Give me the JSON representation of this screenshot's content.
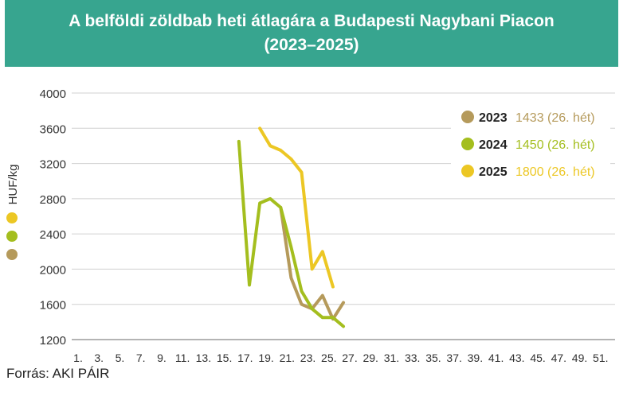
{
  "header": {
    "title_line1": "A belföldi zöldbab heti átlagára a Budapesti Nagybani Piacon",
    "title_line2": "(2023–2025)"
  },
  "source": "Forrás: AKI PÁIR",
  "chart_data": {
    "type": "line",
    "ylabel": "HUF/kg",
    "ylim": [
      1200,
      4000
    ],
    "yticks": [
      1200,
      1600,
      2000,
      2400,
      2800,
      3200,
      3600,
      4000
    ],
    "xlim": [
      1,
      53
    ],
    "xtick_labels": [
      "1.",
      "3.",
      "5.",
      "7.",
      "9.",
      "11.",
      "13.",
      "15.",
      "17.",
      "19.",
      "21.",
      "23.",
      "25.",
      "27.",
      "29.",
      "31.",
      "33.",
      "35.",
      "37.",
      "39.",
      "41.",
      "43.",
      "45.",
      "47.",
      "49.",
      "51."
    ],
    "xtick_values": [
      1,
      3,
      5,
      7,
      9,
      11,
      13,
      15,
      17,
      19,
      21,
      23,
      25,
      27,
      29,
      31,
      33,
      35,
      37,
      39,
      41,
      43,
      45,
      47,
      49,
      51
    ],
    "grid": true,
    "legend_position": "top-right",
    "series": [
      {
        "name": "2023",
        "legend_value": "1433 (26. hét)",
        "color": "#b59a5b",
        "x": [
          21,
          22,
          23,
          24,
          25,
          26,
          27
        ],
        "y": [
          2700,
          1900,
          1600,
          1550,
          1700,
          1433,
          1620
        ]
      },
      {
        "name": "2024",
        "legend_value": "1450 (26. hét)",
        "color": "#a4be1e",
        "x": [
          17,
          18,
          19,
          20,
          21,
          22,
          23,
          24,
          25,
          26,
          27
        ],
        "y": [
          3450,
          1820,
          2750,
          2800,
          2700,
          2250,
          1750,
          1550,
          1450,
          1450,
          1350
        ]
      },
      {
        "name": "2025",
        "legend_value": "1800 (26. hét)",
        "color": "#ecc724",
        "x": [
          19,
          20,
          21,
          22,
          23,
          24,
          25,
          26
        ],
        "y": [
          3600,
          3400,
          3350,
          3250,
          3100,
          2000,
          2200,
          1800
        ]
      }
    ]
  }
}
